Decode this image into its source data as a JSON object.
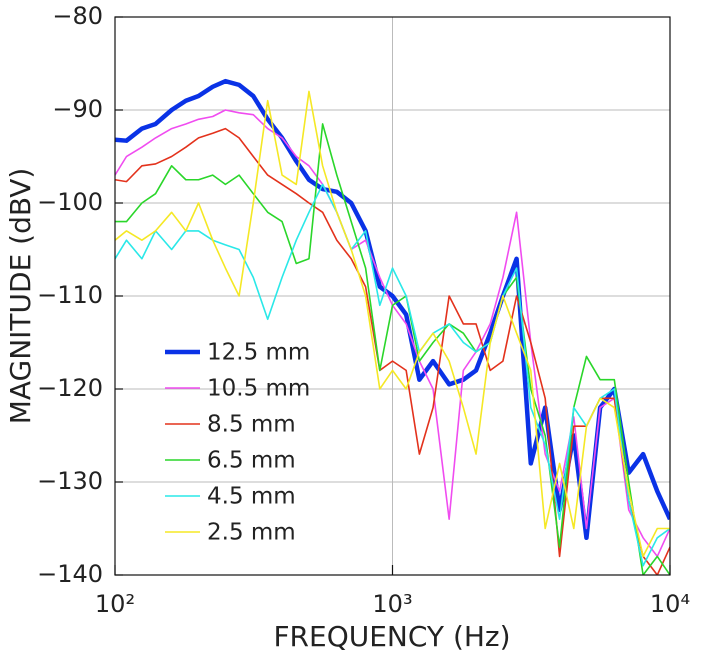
{
  "chart_data": {
    "type": "line",
    "x_label": "FREQUENCY (Hz)",
    "y_label": "MAGNITUDE (dBV)",
    "x_scale": "log",
    "grid": true,
    "legend": "lower left",
    "xlim": [
      100,
      10000
    ],
    "ylim": [
      -140,
      -80
    ],
    "xticks": [
      {
        "value": 100,
        "label": "10²"
      },
      {
        "value": 1000,
        "label": "10³"
      },
      {
        "value": 10000,
        "label": "10⁴"
      }
    ],
    "yticks": [
      {
        "value": -140,
        "label": "−140"
      },
      {
        "value": -130,
        "label": "−130"
      },
      {
        "value": -120,
        "label": "−120"
      },
      {
        "value": -110,
        "label": "−110"
      },
      {
        "value": -100,
        "label": "−100"
      },
      {
        "value": -90,
        "label": "−90"
      },
      {
        "value": -80,
        "label": "−80"
      }
    ],
    "x": [
      100,
      110,
      125,
      140,
      160,
      180,
      200,
      225,
      250,
      280,
      315,
      355,
      400,
      450,
      500,
      560,
      630,
      710,
      800,
      900,
      1000,
      1120,
      1250,
      1400,
      1600,
      1800,
      2000,
      2250,
      2500,
      2800,
      3150,
      3550,
      4000,
      4500,
      5000,
      5600,
      6300,
      7100,
      8000,
      9000,
      10000
    ],
    "series": [
      {
        "name": "12.5 mm",
        "color": "#0a32e6",
        "width": 4.5,
        "values": [
          -93.2,
          -93.3,
          -92,
          -91.5,
          -90,
          -89,
          -88.5,
          -87.5,
          -86.9,
          -87.3,
          -88.5,
          -91,
          -93,
          -95.5,
          -97.5,
          -98.5,
          -98.8,
          -100,
          -103,
          -109,
          -110,
          -112,
          -119,
          -117,
          -119.5,
          -119,
          -118,
          -114,
          -110,
          -106,
          -128,
          -122,
          -133,
          -125,
          -136,
          -122,
          -120,
          -129,
          -127,
          -131,
          -134
        ]
      },
      {
        "name": "10.5 mm",
        "color": "#f04cf0",
        "width": 1.6,
        "values": [
          -97,
          -95,
          -94,
          -93,
          -92,
          -91.5,
          -91,
          -90.7,
          -90,
          -90.3,
          -90.5,
          -92,
          -93,
          -95,
          -96,
          -98,
          -101,
          -105,
          -104,
          -108,
          -111,
          -113,
          -117,
          -120,
          -134,
          -118,
          -116,
          -113,
          -108,
          -101,
          -115,
          -127,
          -131,
          -123,
          -135,
          -122,
          -121,
          -133,
          -136,
          -138,
          -135
        ]
      },
      {
        "name": "8.5 mm",
        "color": "#e3321c",
        "width": 1.6,
        "values": [
          -97.5,
          -97.7,
          -96,
          -95.8,
          -95,
          -94,
          -93,
          -92.5,
          -92,
          -93,
          -95,
          -97,
          -98,
          -99,
          -100,
          -101,
          -104,
          -106,
          -109,
          -118,
          -117,
          -118,
          -127,
          -122,
          -110,
          -113,
          -113,
          -118,
          -117,
          -110,
          -115,
          -121,
          -138,
          -124,
          -124,
          -121,
          -121,
          -132,
          -138,
          -140,
          -137
        ]
      },
      {
        "name": "6.5 mm",
        "color": "#2ad62a",
        "width": 1.6,
        "values": [
          -102,
          -102,
          -100,
          -99,
          -96,
          -97.5,
          -97.5,
          -97,
          -98,
          -97,
          -99,
          -101,
          -102,
          -106.5,
          -106,
          -91.5,
          -97,
          -102,
          -107,
          -118,
          -111,
          -110,
          -117,
          -115,
          -113,
          -114,
          -116,
          -115,
          -110,
          -108,
          -120,
          -125,
          -137,
          -122,
          -116.5,
          -119,
          -119,
          -130,
          -140,
          -138,
          -140
        ]
      },
      {
        "name": "4.5 mm",
        "color": "#2ae8e8",
        "width": 1.6,
        "values": [
          -106,
          -104,
          -106,
          -103,
          -105,
          -103,
          -103,
          -104,
          -104.5,
          -105,
          -108,
          -112.5,
          -108,
          -104,
          -101,
          -98,
          -101,
          -105,
          -103,
          -111,
          -107,
          -110,
          -116,
          -114,
          -113,
          -115,
          -116,
          -115,
          -110,
          -107,
          -122,
          -126,
          -134,
          -122,
          -124,
          -121,
          -120,
          -132,
          -139,
          -136,
          -135
        ]
      },
      {
        "name": "2.5 mm",
        "color": "#f5e825",
        "width": 1.6,
        "values": [
          -104,
          -103,
          -104,
          -103,
          -101,
          -103,
          -100,
          -104,
          -107,
          -110,
          -100,
          -89,
          -97,
          -98,
          -88,
          -96,
          -101,
          -105,
          -110,
          -120,
          -118,
          -120,
          -116,
          -114,
          -117,
          -122,
          -127,
          -115,
          -110,
          -114,
          -118,
          -135,
          -128,
          -135,
          -124,
          -121,
          -122,
          -131,
          -138,
          -135,
          -135
        ]
      }
    ]
  }
}
